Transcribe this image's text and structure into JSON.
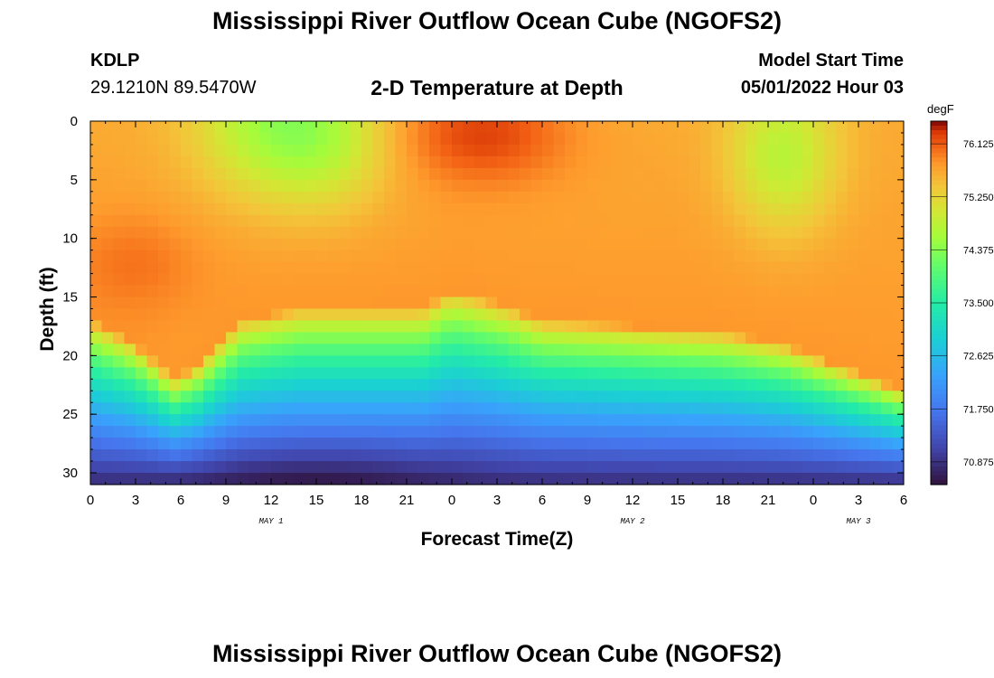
{
  "header": {
    "title": "Mississippi River Outflow Ocean Cube (NGOFS2)",
    "station": "KDLP",
    "coords": "29.1210N  89.5470W",
    "subtitle": "2-D Temperature at Depth",
    "start_label": "Model Start Time",
    "start_value": "05/01/2022 Hour 03"
  },
  "footer": {
    "title": "Mississippi River Outflow Ocean Cube (NGOFS2)"
  },
  "chart_data": {
    "type": "heatmap",
    "title": "2-D Temperature at Depth",
    "xlabel": "Forecast Time(Z)",
    "ylabel": "Depth (ft)",
    "x_tick_labels": [
      "0",
      "3",
      "6",
      "9",
      "12",
      "15",
      "18",
      "21",
      "0",
      "3",
      "6",
      "9",
      "12",
      "15",
      "18",
      "21",
      "0",
      "3",
      "6"
    ],
    "date_labels": [
      {
        "label": "MAY 1",
        "tick_index": 4
      },
      {
        "label": "MAY 2",
        "tick_index": 12
      },
      {
        "label": "MAY 3",
        "tick_index": 17
      }
    ],
    "x_range_hours": [
      0,
      54
    ],
    "y_tick_labels": [
      "0",
      "5",
      "10",
      "15",
      "20",
      "25",
      "30"
    ],
    "y_range_ft": [
      0,
      31
    ],
    "y_inverted": true,
    "colorbar": {
      "unit": "degF",
      "labels": [
        "76.125",
        "75.250",
        "74.375",
        "73.500",
        "72.625",
        "71.750",
        "70.875"
      ],
      "range": [
        70.5,
        76.5
      ]
    },
    "thermocline_depth_ft": [
      {
        "hour": 0,
        "depth": 17
      },
      {
        "hour": 3,
        "depth": 19
      },
      {
        "hour": 5.5,
        "depth": 22
      },
      {
        "hour": 7,
        "depth": 21
      },
      {
        "hour": 10,
        "depth": 17
      },
      {
        "hour": 14,
        "depth": 16
      },
      {
        "hour": 18,
        "depth": 16
      },
      {
        "hour": 22,
        "depth": 16
      },
      {
        "hour": 24,
        "depth": 14.5
      },
      {
        "hour": 27,
        "depth": 15.5
      },
      {
        "hour": 30,
        "depth": 17
      },
      {
        "hour": 36,
        "depth": 17.5
      },
      {
        "hour": 42,
        "depth": 18
      },
      {
        "hour": 46,
        "depth": 19
      },
      {
        "hour": 50,
        "depth": 21
      },
      {
        "hour": 54,
        "depth": 23
      }
    ],
    "warm_layer_temp_degF": 75.8,
    "bottom_temp_degF": 70.8
  }
}
